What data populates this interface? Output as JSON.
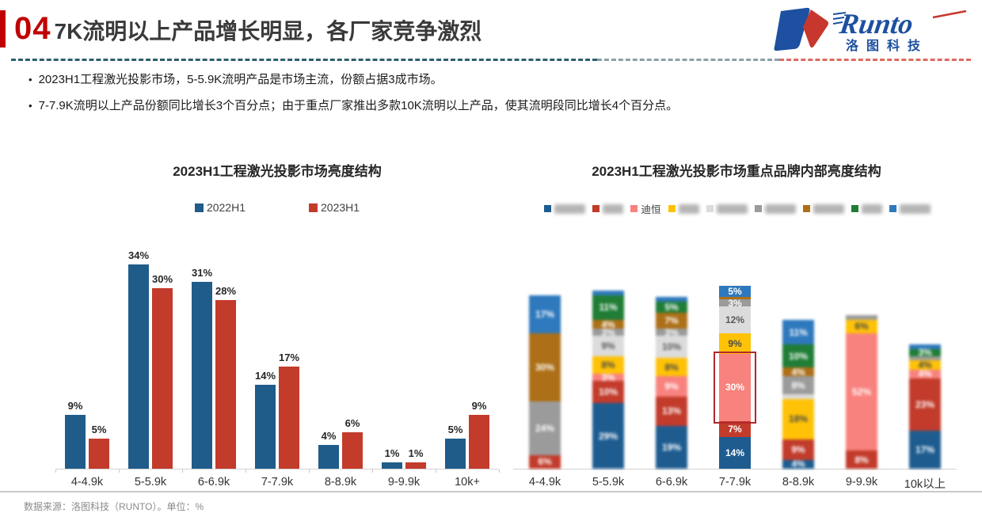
{
  "page": {
    "slide_number": "04",
    "title": "7K流明以上产品增长明显，各厂家竞争激烈",
    "bullets": [
      "2023H1工程激光投影市场，5-5.9K流明产品是市场主流，份额占据3成市场。",
      "7-7.9K流明以上产品份额同比增长3个百分点；由于重点厂家推出多款10K流明以上产品，使其流明段同比增长4个百分点。"
    ],
    "footer": "数据来源：洛图科技（RUNTO）。单位：%",
    "logo": {
      "name": "Runto",
      "subtext": "洛图科技",
      "blue": "#1D50A0",
      "red": "#C8372D"
    }
  },
  "palette": {
    "navy": {
      "fill": "#1E5C90",
      "text": "#FFFFFF"
    },
    "red": {
      "fill": "#C23B2B",
      "text": "#FFFFFF"
    },
    "pink": {
      "fill": "#F8827E",
      "text": "#FFFFFF"
    },
    "yellow": {
      "fill": "#FFC207",
      "text": "#4A4A4A"
    },
    "gray_light": {
      "fill": "#DCDCDC",
      "text": "#595959"
    },
    "gray_dark": {
      "fill": "#9B9B9B",
      "text": "#FFFFFF"
    },
    "brown": {
      "fill": "#AD6F17",
      "text": "#FFFFFF"
    },
    "green": {
      "fill": "#1F7D35",
      "text": "#FFFFFF"
    },
    "blue_bright": {
      "fill": "#2E79BD",
      "text": "#FFFFFF"
    }
  },
  "chart_data": [
    {
      "type": "bar",
      "title": "2023H1工程激光投影市场亮度结构",
      "unit": "%",
      "grid": false,
      "legend_position": "top",
      "ylim": [
        0,
        40
      ],
      "categories": [
        "4-4.9k",
        "5-5.9k",
        "6-6.9k",
        "7-7.9k",
        "8-8.9k",
        "9-9.9k",
        "10k+"
      ],
      "series": [
        {
          "name": "2022H1",
          "color": "#1F5C8A",
          "values": [
            9,
            34,
            31,
            14,
            4,
            1,
            5
          ]
        },
        {
          "name": "2023H1",
          "color": "#C23B2B",
          "values": [
            5,
            30,
            28,
            17,
            6,
            1,
            9
          ]
        }
      ],
      "data_labels": [
        "9%",
        "34%",
        "31%",
        "14%",
        "4%",
        "1%",
        "5%",
        "5%",
        "30%",
        "28%",
        "17%",
        "6%",
        "1%",
        "9%"
      ]
    },
    {
      "type": "bar",
      "subtype": "stacked",
      "title": "2023H1工程激光投影市场重点品牌内部亮度结构",
      "unit": "%",
      "grid": false,
      "legend_position": "top",
      "note": "all columns blurred except 7-7.9k; the 30% pink (迪恒) segment is outlined with a red highlight box; legend brand names blurred except 迪恒",
      "legend": [
        {
          "key": "navy",
          "label": "",
          "blurred": true,
          "chars": 3
        },
        {
          "key": "red",
          "label": "",
          "blurred": true,
          "chars": 2
        },
        {
          "key": "pink",
          "label": "迪恒",
          "blurred": false,
          "chars": 2
        },
        {
          "key": "yellow",
          "label": "",
          "blurred": true,
          "chars": 2
        },
        {
          "key": "gray_light",
          "label": "",
          "blurred": true,
          "chars": 3
        },
        {
          "key": "gray_dark",
          "label": "",
          "blurred": true,
          "chars": 3
        },
        {
          "key": "brown",
          "label": "",
          "blurred": true,
          "chars": 3
        },
        {
          "key": "green",
          "label": "",
          "blurred": true,
          "chars": 2
        },
        {
          "key": "blue_bright",
          "label": "",
          "blurred": true,
          "chars": 3
        }
      ],
      "categories": [
        "4-4.9k",
        "5-5.9k",
        "6-6.9k",
        "7-7.9k",
        "8-8.9k",
        "9-9.9k",
        "10k以上"
      ],
      "columns": [
        {
          "category": "4-4.9k",
          "blurred": true,
          "segments": [
            {
              "key": "red",
              "value": 6,
              "label": "6%"
            },
            {
              "key": "gray_dark",
              "value": 24,
              "label": "24%"
            },
            {
              "key": "brown",
              "value": 30,
              "label": "30%"
            },
            {
              "key": "blue_bright",
              "value": 17,
              "label": "17%"
            }
          ]
        },
        {
          "category": "5-5.9k",
          "blurred": true,
          "segments": [
            {
              "key": "navy",
              "value": 29,
              "label": "29%"
            },
            {
              "key": "red",
              "value": 10,
              "label": "10%"
            },
            {
              "key": "pink",
              "value": 3,
              "label": "3%"
            },
            {
              "key": "yellow",
              "value": 8,
              "label": "8%"
            },
            {
              "key": "gray_light",
              "value": 9,
              "label": "9%"
            },
            {
              "key": "gray_dark",
              "value": 3,
              "label": "3%"
            },
            {
              "key": "brown",
              "value": 4,
              "label": "4%"
            },
            {
              "key": "green",
              "value": 11,
              "label": "11%"
            },
            {
              "key": "blue_bright",
              "value": 2,
              "label": "2%"
            }
          ]
        },
        {
          "category": "6-6.9k",
          "blurred": true,
          "segments": [
            {
              "key": "navy",
              "value": 19,
              "label": "19%"
            },
            {
              "key": "red",
              "value": 13,
              "label": "13%"
            },
            {
              "key": "pink",
              "value": 9,
              "label": "9%"
            },
            {
              "key": "yellow",
              "value": 8,
              "label": "8%"
            },
            {
              "key": "gray_light",
              "value": 10,
              "label": "10%"
            },
            {
              "key": "gray_dark",
              "value": 3,
              "label": "3%"
            },
            {
              "key": "brown",
              "value": 7,
              "label": "7%"
            },
            {
              "key": "green",
              "value": 5,
              "label": "5%"
            },
            {
              "key": "blue_bright",
              "value": 2,
              "label": "2%"
            }
          ]
        },
        {
          "category": "7-7.9k",
          "blurred": false,
          "segments": [
            {
              "key": "navy",
              "value": 14,
              "label": "14%"
            },
            {
              "key": "red",
              "value": 7,
              "label": "7%"
            },
            {
              "key": "pink",
              "value": 30,
              "label": "30%",
              "highlight": true
            },
            {
              "key": "yellow",
              "value": 9,
              "label": "9%"
            },
            {
              "key": "gray_light",
              "value": 12,
              "label": "12%"
            },
            {
              "key": "gray_dark",
              "value": 3,
              "label": "3%"
            },
            {
              "key": "brown",
              "value": 1,
              "label": ""
            },
            {
              "key": "blue_bright",
              "value": 5,
              "label": "5%"
            }
          ]
        },
        {
          "category": "8-8.9k",
          "blurred": true,
          "segments": [
            {
              "key": "navy",
              "value": 4,
              "label": "4%"
            },
            {
              "key": "red",
              "value": 9,
              "label": "9%"
            },
            {
              "key": "yellow",
              "value": 18,
              "label": "18%"
            },
            {
              "key": "gray_light",
              "value": 2,
              "label": "2%"
            },
            {
              "key": "gray_dark",
              "value": 8,
              "label": "8%"
            },
            {
              "key": "brown",
              "value": 4,
              "label": "4%"
            },
            {
              "key": "green",
              "value": 10,
              "label": "10%"
            },
            {
              "key": "blue_bright",
              "value": 11,
              "label": "11%"
            }
          ]
        },
        {
          "category": "9-9.9k",
          "blurred": true,
          "segments": [
            {
              "key": "red",
              "value": 8,
              "label": "8%"
            },
            {
              "key": "pink",
              "value": 52,
              "label": "52%"
            },
            {
              "key": "yellow",
              "value": 6,
              "label": "6%"
            },
            {
              "key": "gray_dark",
              "value": 2,
              "label": "2%"
            }
          ]
        },
        {
          "category": "10k以上",
          "blurred": true,
          "segments": [
            {
              "key": "navy",
              "value": 17,
              "label": "17%"
            },
            {
              "key": "red",
              "value": 23,
              "label": "23%"
            },
            {
              "key": "pink",
              "value": 4,
              "label": "4%"
            },
            {
              "key": "yellow",
              "value": 4,
              "label": "4%"
            },
            {
              "key": "gray_dark",
              "value": 2,
              "label": "2%"
            },
            {
              "key": "green",
              "value": 3,
              "label": "3%"
            },
            {
              "key": "blue_bright",
              "value": 2,
              "label": "2%"
            }
          ]
        }
      ]
    }
  ]
}
